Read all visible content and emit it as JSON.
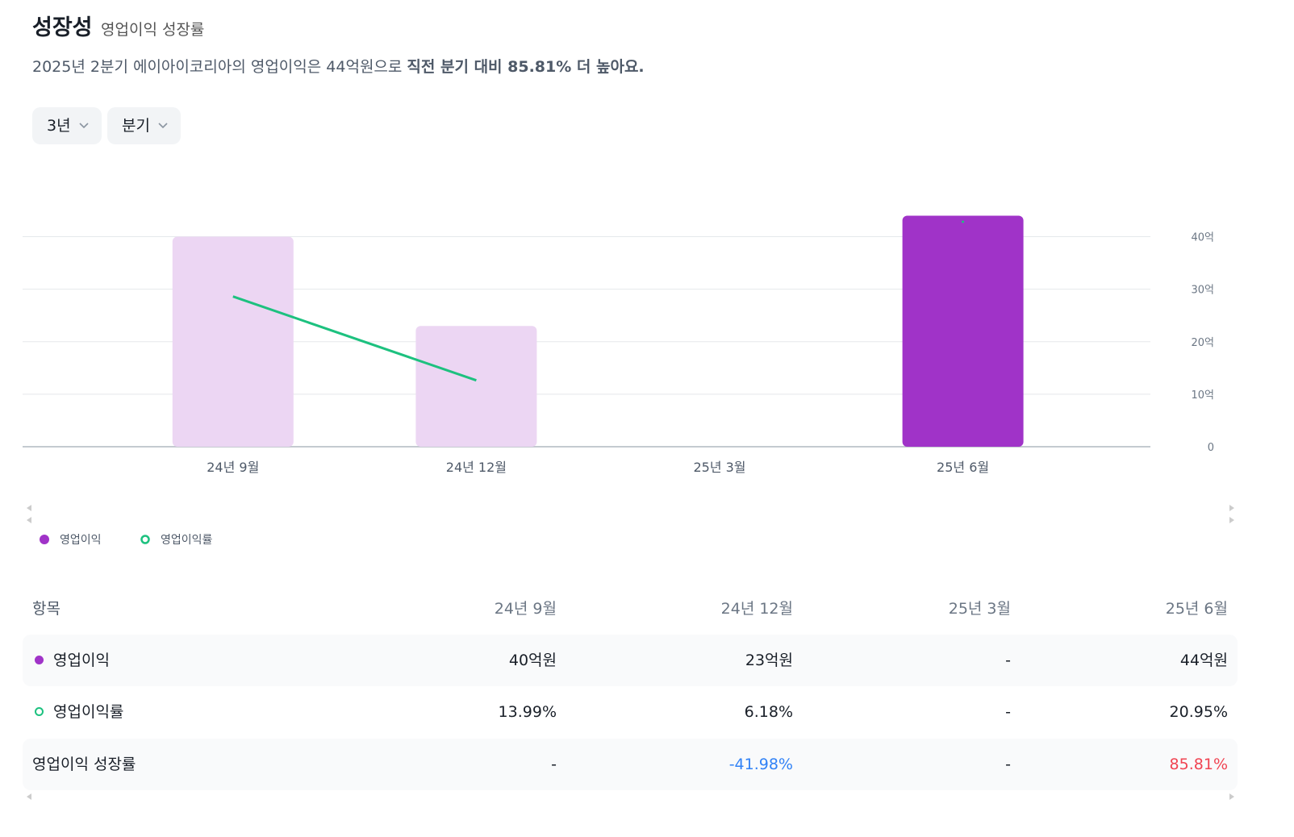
{
  "header": {
    "title": "성장성",
    "subtitle": "영업이익 성장률",
    "summary": "2025년 2분기 에이아이코리아의 영업이익은 44억원으로 ",
    "summary_bold": "직전 분기 대비 85.81% 더 높아요."
  },
  "filters": [
    "3년",
    "분기"
  ],
  "chart_data": {
    "type": "bar",
    "categories": [
      "24년 9월",
      "24년 12월",
      "25년 3월",
      "25년 6월"
    ],
    "series": [
      {
        "name": "영업이익",
        "type": "bar",
        "color": "#a033c8",
        "colors": [
          "#ecd6f3",
          "#ecd6f3",
          "#ecd6f3",
          "#a033c8"
        ],
        "values": [
          40,
          23,
          null,
          44
        ]
      },
      {
        "name": "영업이익률",
        "type": "line",
        "axis": "y2",
        "color": "#1dc17f",
        "values": [
          13.99,
          6.18,
          null,
          20.95
        ]
      }
    ],
    "ylim": [
      0,
      45
    ],
    "yticks": [
      0,
      {
        "value": 10,
        "label": "10억"
      },
      {
        "value": 20,
        "label": "20억"
      },
      {
        "value": 30,
        "label": "30억"
      },
      {
        "value": 40,
        "label": "40억"
      }
    ],
    "y2lim": [
      0,
      22
    ],
    "grid": true
  },
  "table": {
    "header": [
      "항목",
      "24년 9월",
      "24년 12월",
      "25년 3월",
      "25년 6월"
    ],
    "rows": [
      [
        "영업이익",
        "40억원",
        "23억원",
        "-",
        "44억원"
      ],
      [
        "영업이익률",
        "13.99%",
        "6.18%",
        "-",
        "20.95%"
      ],
      [
        "영업이익 성장률",
        "-",
        "-41.98%",
        "-",
        "85.81%"
      ]
    ]
  }
}
